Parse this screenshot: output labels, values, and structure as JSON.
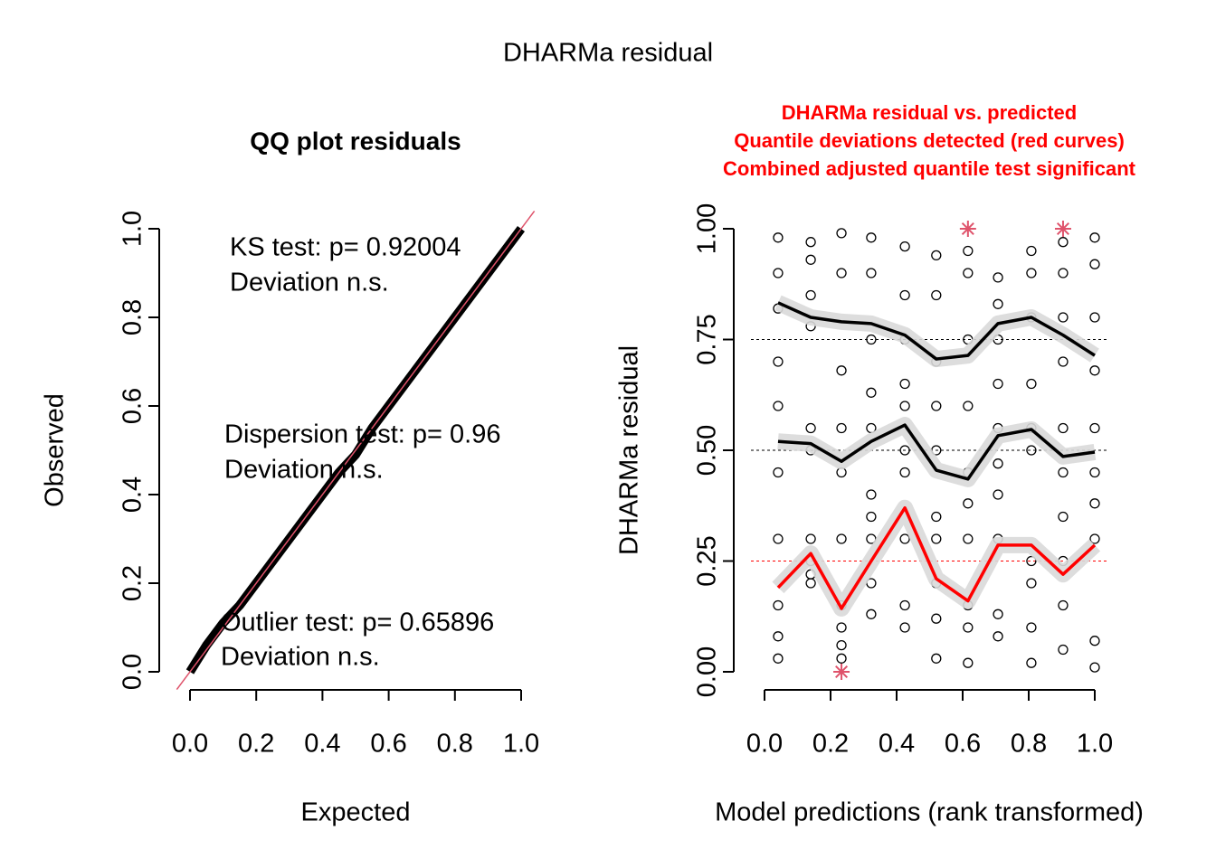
{
  "title": "DHARMa residual",
  "chart_data": [
    {
      "type": "qq",
      "title": "QQ plot residuals",
      "xlabel": "Expected",
      "ylabel": "Observed",
      "xlim": [
        0,
        1
      ],
      "ylim": [
        0,
        1
      ],
      "xticks": [
        {
          "value": 0,
          "label": "0.0"
        },
        {
          "value": 0.2,
          "label": "0.2"
        },
        {
          "value": 0.4,
          "label": "0.4"
        },
        {
          "value": 0.6,
          "label": "0.6"
        },
        {
          "value": 0.8,
          "label": "0.8"
        },
        {
          "value": 1,
          "label": "1.0"
        }
      ],
      "yticks": [
        {
          "value": 0,
          "label": "0.0"
        },
        {
          "value": 0.2,
          "label": "0.2"
        },
        {
          "value": 0.4,
          "label": "0.4"
        },
        {
          "value": 0.6,
          "label": "0.6"
        },
        {
          "value": 0.8,
          "label": "0.8"
        },
        {
          "value": 1,
          "label": "1.0"
        }
      ],
      "x": [
        0,
        0.05,
        0.1,
        0.15,
        0.2,
        0.25,
        0.3,
        0.35,
        0.4,
        0.45,
        0.5,
        0.55,
        0.6,
        0.65,
        0.7,
        0.75,
        0.8,
        0.85,
        0.9,
        0.95,
        1
      ],
      "values": [
        0,
        0.06,
        0.11,
        0.15,
        0.2,
        0.25,
        0.3,
        0.35,
        0.4,
        0.45,
        0.49,
        0.55,
        0.6,
        0.65,
        0.7,
        0.75,
        0.8,
        0.85,
        0.9,
        0.95,
        1
      ],
      "color": "#000000",
      "reference_color": "#DF536B",
      "annotations": [
        "KS test: p= 0.92004",
        "Deviation  n.s.",
        "Dispersion test: p= 0.96",
        "Deviation  n.s.",
        "Outlier test: p= 0.65896",
        "Deviation  n.s."
      ]
    },
    {
      "type": "residual",
      "title": [
        "DHARMa residual vs. predicted",
        "Quantile deviations detected (red curves)",
        "Combined adjusted quantile test significant"
      ],
      "title_color": "#FF0000",
      "xlabel": "Model predictions (rank transformed)",
      "ylabel": "DHARMa residual",
      "xlim": [
        0,
        1
      ],
      "ylim": [
        0,
        1
      ],
      "xticks": [
        {
          "value": 0,
          "label": "0.0"
        },
        {
          "value": 0.2,
          "label": "0.2"
        },
        {
          "value": 0.4,
          "label": "0.4"
        },
        {
          "value": 0.6,
          "label": "0.6"
        },
        {
          "value": 0.8,
          "label": "0.8"
        },
        {
          "value": 1,
          "label": "1.0"
        }
      ],
      "yticks": [
        {
          "value": 0,
          "label": "0.00"
        },
        {
          "value": 0.25,
          "label": "0.25"
        },
        {
          "value": 0.5,
          "label": "0.50"
        },
        {
          "value": 0.75,
          "label": "0.75"
        },
        {
          "value": 1,
          "label": "1.00"
        }
      ],
      "reference_lines": [
        0.25,
        0.5,
        0.75
      ],
      "points": {
        "x": [
          0.041,
          0.041,
          0.041,
          0.041,
          0.041,
          0.041,
          0.041,
          0.041,
          0.041,
          0.041,
          0.14,
          0.14,
          0.14,
          0.14,
          0.14,
          0.14,
          0.14,
          0.14,
          0.14,
          0.14,
          0.233,
          0.233,
          0.233,
          0.233,
          0.233,
          0.233,
          0.233,
          0.233,
          0.233,
          0.233,
          0.323,
          0.323,
          0.323,
          0.323,
          0.323,
          0.323,
          0.323,
          0.323,
          0.323,
          0.323,
          0.425,
          0.425,
          0.425,
          0.425,
          0.425,
          0.425,
          0.425,
          0.425,
          0.425,
          0.425,
          0.52,
          0.52,
          0.52,
          0.52,
          0.52,
          0.52,
          0.52,
          0.52,
          0.52,
          0.52,
          0.616,
          0.616,
          0.616,
          0.616,
          0.616,
          0.616,
          0.616,
          0.616,
          0.616,
          0.616,
          0.707,
          0.707,
          0.707,
          0.707,
          0.707,
          0.707,
          0.707,
          0.707,
          0.707,
          0.707,
          0.808,
          0.808,
          0.808,
          0.808,
          0.808,
          0.808,
          0.808,
          0.808,
          0.808,
          0.808,
          0.904,
          0.904,
          0.904,
          0.904,
          0.904,
          0.904,
          0.904,
          0.904,
          0.904,
          0.904,
          1,
          1,
          1,
          1,
          1,
          1,
          1,
          1,
          1,
          1
        ],
        "y": [
          0.03,
          0.08,
          0.15,
          0.3,
          0.45,
          0.6,
          0.7,
          0.82,
          0.9,
          0.98,
          0.2,
          0.22,
          0.25,
          0.3,
          0.5,
          0.55,
          0.78,
          0.85,
          0.93,
          0.97,
          0.03,
          0.06,
          0.1,
          0.15,
          0.3,
          0.45,
          0.55,
          0.68,
          0.9,
          0.99,
          0.13,
          0.2,
          0.3,
          0.35,
          0.4,
          0.55,
          0.63,
          0.75,
          0.9,
          0.98,
          0.1,
          0.15,
          0.3,
          0.45,
          0.5,
          0.6,
          0.65,
          0.75,
          0.85,
          0.96,
          0.03,
          0.12,
          0.2,
          0.3,
          0.35,
          0.5,
          0.6,
          0.7,
          0.85,
          0.94,
          0.02,
          0.1,
          0.15,
          0.3,
          0.38,
          0.45,
          0.6,
          0.75,
          0.9,
          0.95,
          0.08,
          0.13,
          0.3,
          0.4,
          0.47,
          0.55,
          0.65,
          0.75,
          0.83,
          0.89,
          0.02,
          0.1,
          0.2,
          0.25,
          0.5,
          0.55,
          0.65,
          0.8,
          0.9,
          0.95,
          0.05,
          0.15,
          0.25,
          0.35,
          0.45,
          0.55,
          0.7,
          0.8,
          0.9,
          0.97,
          0.01,
          0.07,
          0.3,
          0.38,
          0.45,
          0.55,
          0.68,
          0.8,
          0.92,
          0.98
        ]
      },
      "outliers": {
        "x": [
          0.233,
          0.616,
          0.904
        ],
        "y": [
          0,
          1,
          1
        ],
        "color": "#DF536B"
      },
      "quantile_x": [
        0.041,
        0.14,
        0.233,
        0.323,
        0.425,
        0.52,
        0.616,
        0.707,
        0.808,
        0.904,
        1
      ],
      "series": [
        {
          "color": "#FF0000",
          "values": [
            0.19,
            0.267,
            0.143,
            0.25,
            0.37,
            0.21,
            0.16,
            0.286,
            0.286,
            0.22,
            0.286
          ]
        },
        {
          "color": "#000000",
          "values": [
            0.52,
            0.515,
            0.475,
            0.52,
            0.557,
            0.455,
            0.435,
            0.533,
            0.547,
            0.486,
            0.496
          ]
        },
        {
          "color": "#000000",
          "values": [
            0.833,
            0.8,
            0.79,
            0.786,
            0.76,
            0.706,
            0.714,
            0.786,
            0.8,
            0.76,
            0.714
          ]
        }
      ]
    }
  ]
}
